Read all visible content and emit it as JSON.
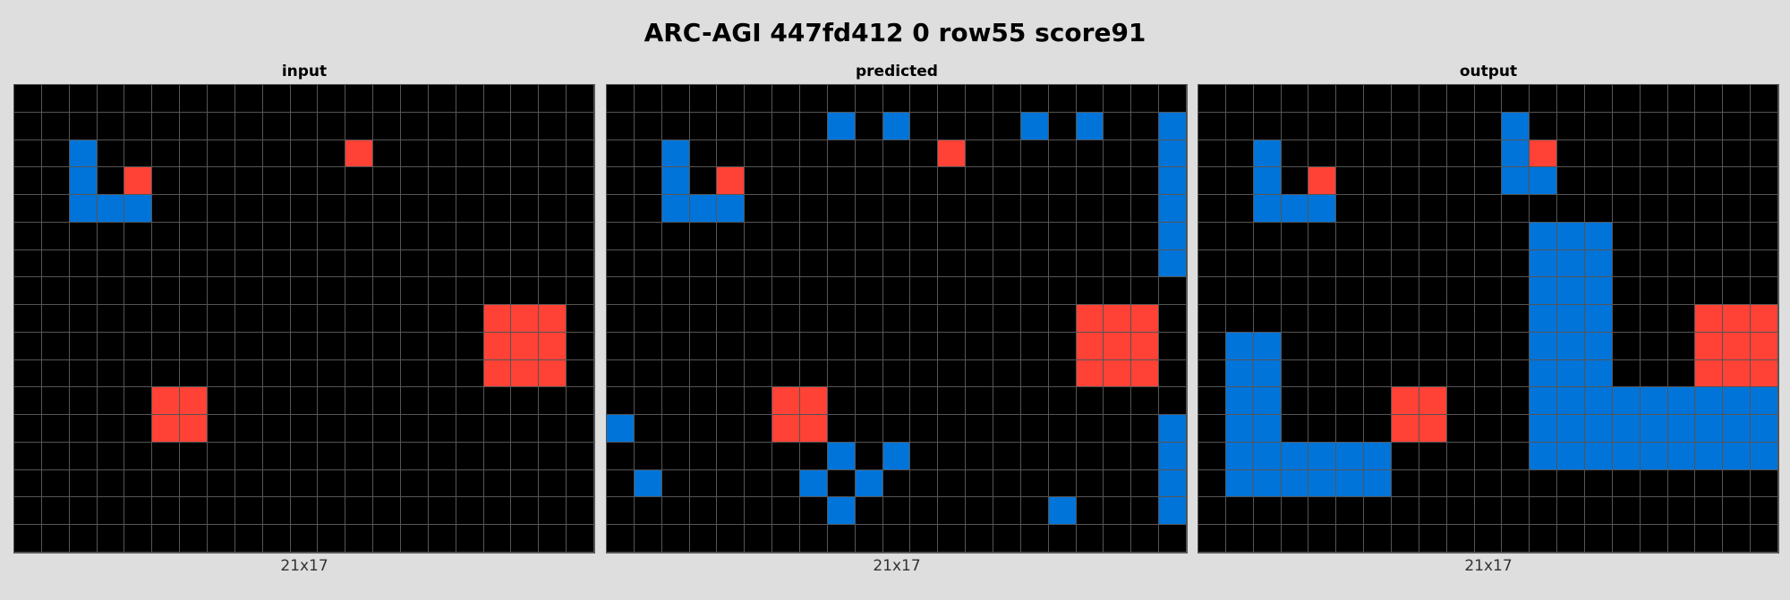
{
  "title": "ARC-AGI 447fd412 0 row55 score91",
  "palette": {
    "0": "#000000",
    "1": "#0074d9",
    "2": "#ff4136"
  },
  "panels": [
    {
      "label": "input",
      "caption": "21x17",
      "grid": [
        "000000000000000000000",
        "000000000000000000000",
        "001000000000200000000",
        "001020000000000000000",
        "001110000000000000000",
        "000000000000000000000",
        "000000000000000000000",
        "000000000000000000000",
        "000000000000000002220",
        "000000000000000002220",
        "000000000000000002220",
        "000002200000000000000",
        "000002200000000000000",
        "000000000000000000000",
        "000000000000000000000",
        "000000000000000000000",
        "000000000000000000000"
      ]
    },
    {
      "label": "predicted",
      "caption": "21x17",
      "grid": [
        "000000000000000000000",
        "000000001010000101001",
        "001000000000200000001",
        "001020000000000000001",
        "001110000000000000001",
        "000000000000000000001",
        "000000000000000000001",
        "000000000000000000000",
        "000000000000000002220",
        "000000000000000002220",
        "000000000000000002220",
        "000000220000000000000",
        "100000220000000000001",
        "000000001010000000001",
        "010000010100000000001",
        "000000001000000010001",
        "000000000000000000000"
      ]
    },
    {
      "label": "output",
      "caption": "21x17",
      "grid": [
        "000000000000000000000",
        "000000000001000000000",
        "001000000001200000000",
        "001020000001100000000",
        "001110000000000000000",
        "000000000000111000000",
        "000000000000111000000",
        "000000000000111000000",
        "000000000000111000222",
        "011000000000111000222",
        "011000000000111000222",
        "011000022000111111111",
        "011000022000111111111",
        "011111100000111111111",
        "011111100000000000000",
        "000000000000000000000",
        "000000000000000000000"
      ]
    }
  ]
}
